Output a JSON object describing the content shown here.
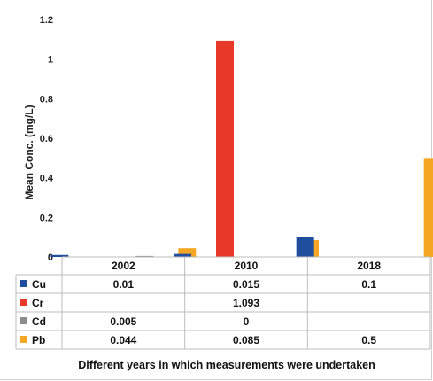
{
  "chart_data": {
    "type": "bar",
    "categories": [
      "2002",
      "2010",
      "2018"
    ],
    "ylabel": "Mean Conc. (mg/L)",
    "xlabel": "Different years in which measurements were undertaken",
    "ylim": [
      0,
      1.2
    ],
    "yticks": [
      "0",
      "0.2",
      "0.4",
      "0.6",
      "0.8",
      "1",
      "1.2"
    ],
    "grid": false,
    "legend": "data table below chart",
    "series": [
      {
        "name": "Cu",
        "color": "#1f4e9e",
        "values": [
          0.01,
          0.015,
          0.1
        ],
        "labels": [
          "0.01",
          "0.015",
          "0.1"
        ]
      },
      {
        "name": "Cr",
        "color": "#e8392a",
        "values": [
          null,
          1.093,
          null
        ],
        "labels": [
          "",
          "1.093",
          ""
        ]
      },
      {
        "name": "Cd",
        "color": "#8c8c8c",
        "values": [
          0.005,
          0,
          null
        ],
        "labels": [
          "0.005",
          "0",
          ""
        ]
      },
      {
        "name": "Pb",
        "color": "#f5a623",
        "values": [
          0.044,
          0.085,
          0.5
        ],
        "labels": [
          "0.044",
          "0.085",
          "0.5"
        ]
      }
    ]
  }
}
